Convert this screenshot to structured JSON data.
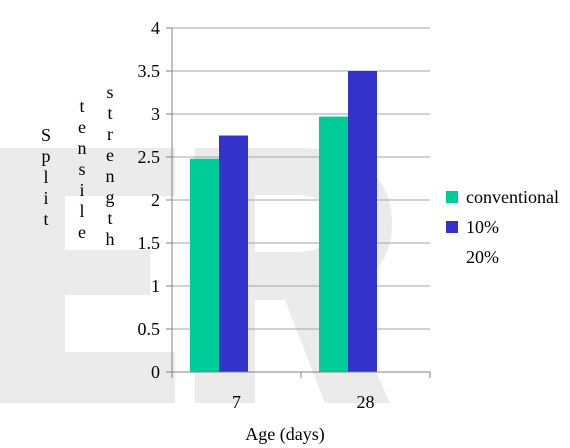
{
  "chart_data": {
    "type": "bar",
    "categories": [
      "7",
      "28"
    ],
    "series": [
      {
        "name": "conventional",
        "values": [
          2.48,
          2.97
        ],
        "color": "#00cc99"
      },
      {
        "name": "10%",
        "values": [
          2.75,
          3.5
        ],
        "color": "#3333cc"
      },
      {
        "name": "20%",
        "values": [
          0,
          0
        ],
        "color": "#ffffff"
      }
    ],
    "ylabel_lines": [
      "Split",
      "tensile",
      "strength"
    ],
    "xlabel": "Age (days)",
    "ylim": [
      0,
      4
    ],
    "yticks": [
      "0",
      "0.5",
      "1",
      "1.5",
      "2",
      "2.5",
      "3",
      "3.5",
      "4"
    ],
    "grid": true,
    "legend_position": "right"
  }
}
